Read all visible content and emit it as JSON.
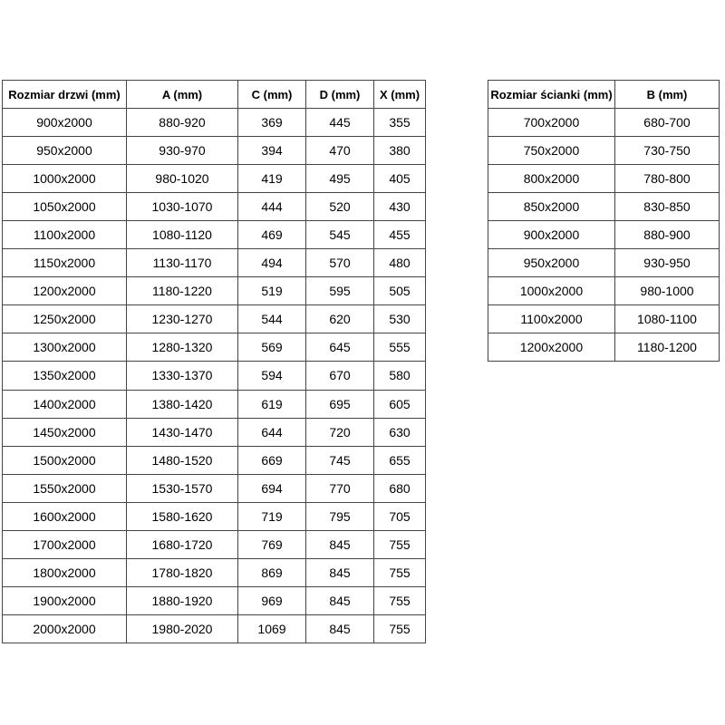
{
  "page": {
    "background": "#ffffff",
    "text_color": "#000000",
    "border_color": "#454545"
  },
  "chart_data": [
    {
      "type": "table",
      "name": "door-size-table",
      "columns": [
        "Rozmiar drzwi (mm)",
        "A (mm)",
        "C (mm)",
        "D (mm)",
        "X (mm)"
      ],
      "rows": [
        [
          "900x2000",
          "880-920",
          "369",
          "445",
          "355"
        ],
        [
          "950x2000",
          "930-970",
          "394",
          "470",
          "380"
        ],
        [
          "1000x2000",
          "980-1020",
          "419",
          "495",
          "405"
        ],
        [
          "1050x2000",
          "1030-1070",
          "444",
          "520",
          "430"
        ],
        [
          "1100x2000",
          "1080-1120",
          "469",
          "545",
          "455"
        ],
        [
          "1150x2000",
          "1130-1170",
          "494",
          "570",
          "480"
        ],
        [
          "1200x2000",
          "1180-1220",
          "519",
          "595",
          "505"
        ],
        [
          "1250x2000",
          "1230-1270",
          "544",
          "620",
          "530"
        ],
        [
          "1300x2000",
          "1280-1320",
          "569",
          "645",
          "555"
        ],
        [
          "1350x2000",
          "1330-1370",
          "594",
          "670",
          "580"
        ],
        [
          "1400x2000",
          "1380-1420",
          "619",
          "695",
          "605"
        ],
        [
          "1450x2000",
          "1430-1470",
          "644",
          "720",
          "630"
        ],
        [
          "1500x2000",
          "1480-1520",
          "669",
          "745",
          "655"
        ],
        [
          "1550x2000",
          "1530-1570",
          "694",
          "770",
          "680"
        ],
        [
          "1600x2000",
          "1580-1620",
          "719",
          "795",
          "705"
        ],
        [
          "1700x2000",
          "1680-1720",
          "769",
          "845",
          "755"
        ],
        [
          "1800x2000",
          "1780-1820",
          "869",
          "845",
          "755"
        ],
        [
          "1900x2000",
          "1880-1920",
          "969",
          "845",
          "755"
        ],
        [
          "2000x2000",
          "1980-2020",
          "1069",
          "845",
          "755"
        ]
      ]
    },
    {
      "type": "table",
      "name": "wall-size-table",
      "columns": [
        "Rozmiar ścianki (mm)",
        "B (mm)"
      ],
      "rows": [
        [
          "700x2000",
          "680-700"
        ],
        [
          "750x2000",
          "730-750"
        ],
        [
          "800x2000",
          "780-800"
        ],
        [
          "850x2000",
          "830-850"
        ],
        [
          "900x2000",
          "880-900"
        ],
        [
          "950x2000",
          "930-950"
        ],
        [
          "1000x2000",
          "980-1000"
        ],
        [
          "1100x2000",
          "1080-1100"
        ],
        [
          "1200x2000",
          "1180-1200"
        ]
      ]
    }
  ]
}
